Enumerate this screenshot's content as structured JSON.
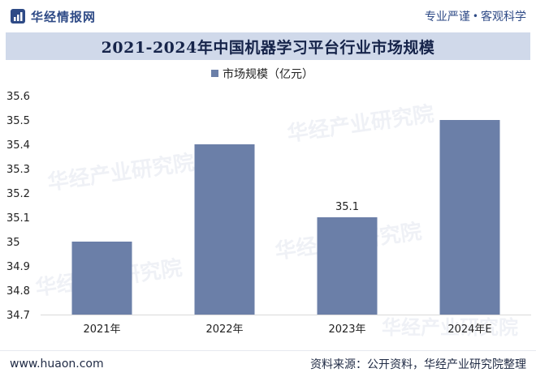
{
  "header": {
    "brand": "华经情报网",
    "slogan_left": "专业严谨",
    "slogan_dot": "•",
    "slogan_right": "客观科学"
  },
  "watermark": "华经产业研究院",
  "chart_data": {
    "type": "bar",
    "title": "2021-2024年中国机器学习平台行业市场规模",
    "legend": "市场规模（亿元）",
    "legend_position": "top",
    "categories": [
      "2021年",
      "2022年",
      "2023年",
      "2024年E"
    ],
    "series": [
      {
        "name": "市场规模（亿元）",
        "values": [
          35.0,
          35.4,
          35.1,
          35.5
        ]
      }
    ],
    "data_labels": [
      null,
      null,
      "35.1",
      null
    ],
    "ylim": [
      34.7,
      35.6
    ],
    "yticks": [
      "35.6",
      "35.5",
      "35.4",
      "35.3",
      "35.2",
      "35.1",
      "35",
      "34.9",
      "34.8",
      "34.7"
    ],
    "grid": false,
    "bar_color": "#6b7fa8"
  },
  "footer": {
    "url": "www.huaon.com",
    "source": "资料来源：公开资料，华经产业研究院整理"
  }
}
